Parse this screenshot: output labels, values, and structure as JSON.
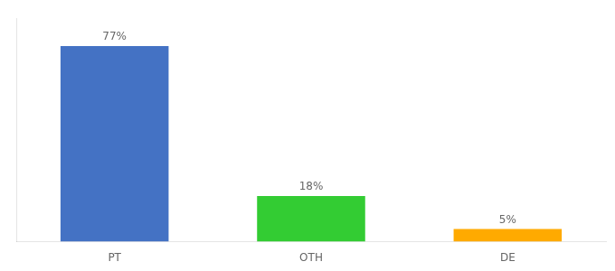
{
  "chart_data": {
    "type": "bar",
    "categories": [
      "PT",
      "OTH",
      "DE"
    ],
    "values": [
      77,
      18,
      5
    ],
    "value_labels": [
      "77%",
      "18%",
      "5%"
    ],
    "data_labels": true,
    "colors": [
      "#4472c4",
      "#33cc33",
      "#ffaa00"
    ],
    "ylim": [
      0,
      88
    ],
    "grid": false,
    "legend": false,
    "tick_labels": "x"
  }
}
